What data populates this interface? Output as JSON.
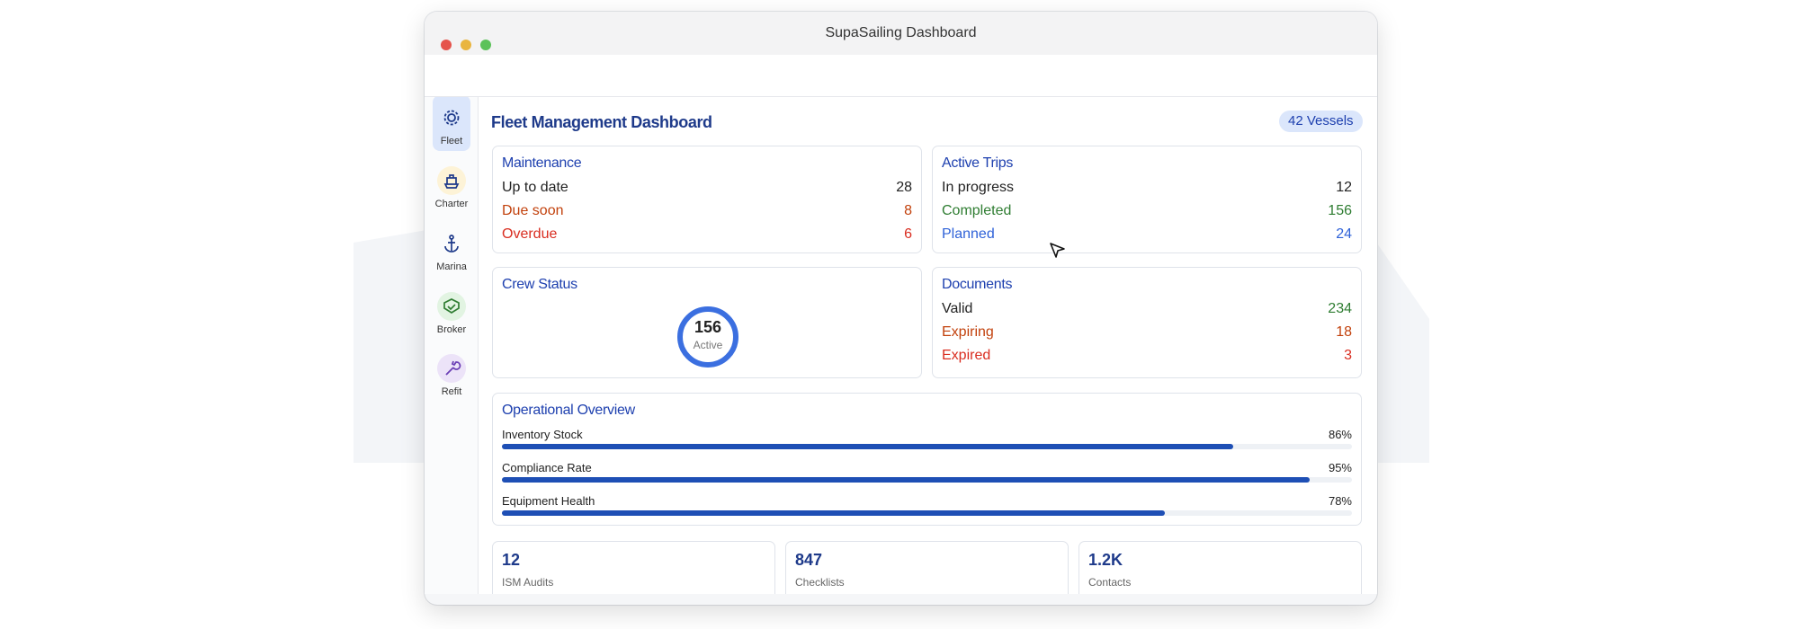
{
  "window": {
    "title": "SupaSailing Dashboard"
  },
  "nav": [
    "Fleet",
    "Charter",
    "Marina",
    "Broker",
    "Refit"
  ],
  "header": {
    "title": "Fleet Management Dashboard",
    "badge": "42 Vessels"
  },
  "maintenance": {
    "title": "Maintenance",
    "rows": [
      {
        "label": "Up to date",
        "value": 28
      },
      {
        "label": "Due soon",
        "value": 8
      },
      {
        "label": "Overdue",
        "value": 6
      }
    ]
  },
  "active_trips": {
    "title": "Active Trips",
    "rows": [
      {
        "label": "In progress",
        "value": 12
      },
      {
        "label": "Completed",
        "value": 156
      },
      {
        "label": "Planned",
        "value": 24
      }
    ]
  },
  "crew_status": {
    "title": "Crew Status",
    "value": 156,
    "label": "Active"
  },
  "documents": {
    "title": "Documents",
    "rows": [
      {
        "label": "Valid",
        "value": 234
      },
      {
        "label": "Expiring",
        "value": 18
      },
      {
        "label": "Expired",
        "value": 3
      }
    ]
  },
  "operational_overview": {
    "title": "Operational Overview",
    "bars": [
      {
        "label": "Inventory Stock",
        "value": 86,
        "value_label": "86%"
      },
      {
        "label": "Compliance Rate",
        "value": 95,
        "value_label": "95%"
      },
      {
        "label": "Equipment Health",
        "value": 78,
        "value_label": "78%"
      }
    ]
  },
  "stats": [
    {
      "value": 12,
      "label": "ISM Audits"
    },
    {
      "value": 847,
      "label": "Checklists"
    },
    {
      "value": "1.2K",
      "label": "Contacts"
    }
  ]
}
